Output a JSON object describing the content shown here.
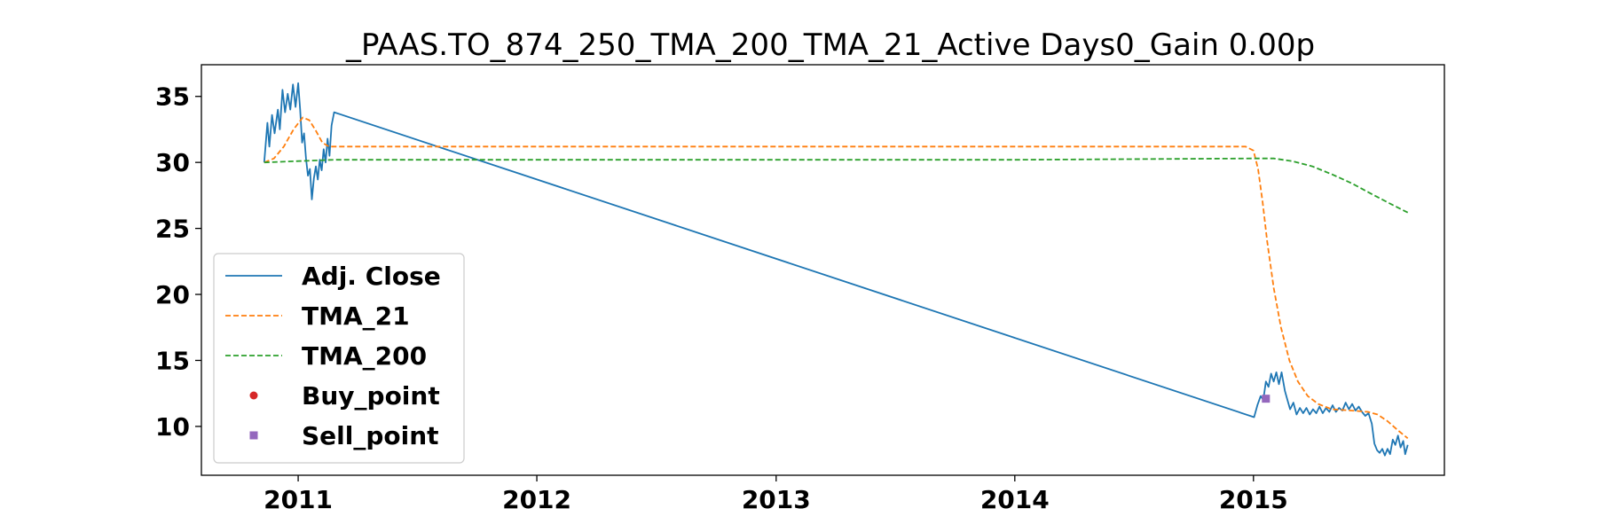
{
  "chart_data": {
    "type": "line",
    "title": "_PAAS.TO_874_250_TMA_200_TMA_21_Active Days0_Gain   0.00p",
    "xlabel": "",
    "ylabel": "",
    "x_ticks": [
      "2011",
      "2012",
      "2013",
      "2014",
      "2015"
    ],
    "y_ticks": [
      10,
      15,
      20,
      25,
      30,
      35
    ],
    "xlim": [
      "2010-08-06",
      "2015-10-20"
    ],
    "ylim": [
      6.3,
      37.4
    ],
    "grid": false,
    "legend_position": "center-left",
    "series": [
      {
        "name": "Adj. Close",
        "style": "solid",
        "color": "#1f77b4",
        "points": [
          [
            "2010-11-10",
            30.0
          ],
          [
            "2010-11-15",
            33.0
          ],
          [
            "2010-11-18",
            31.2
          ],
          [
            "2010-11-22",
            33.6
          ],
          [
            "2010-11-26",
            32.2
          ],
          [
            "2010-12-01",
            34.0
          ],
          [
            "2010-12-04",
            32.5
          ],
          [
            "2010-12-08",
            35.5
          ],
          [
            "2010-12-12",
            33.8
          ],
          [
            "2010-12-16",
            35.2
          ],
          [
            "2010-12-20",
            34.0
          ],
          [
            "2010-12-24",
            35.9
          ],
          [
            "2010-12-28",
            34.2
          ],
          [
            "2011-01-01",
            36.0
          ],
          [
            "2011-01-04",
            34.0
          ],
          [
            "2011-01-07",
            31.5
          ],
          [
            "2011-01-10",
            32.2
          ],
          [
            "2011-01-13",
            30.3
          ],
          [
            "2011-01-16",
            29.0
          ],
          [
            "2011-01-19",
            29.5
          ],
          [
            "2011-01-22",
            27.2
          ],
          [
            "2011-01-25",
            28.8
          ],
          [
            "2011-01-28",
            29.7
          ],
          [
            "2011-01-31",
            28.7
          ],
          [
            "2011-02-03",
            30.2
          ],
          [
            "2011-02-06",
            29.4
          ],
          [
            "2011-02-09",
            31.0
          ],
          [
            "2011-02-12",
            30.0
          ],
          [
            "2011-02-15",
            31.8
          ],
          [
            "2011-02-18",
            30.5
          ],
          [
            "2011-02-21",
            32.8
          ],
          [
            "2011-02-25",
            33.8
          ],
          [
            "2015-01-02",
            10.7
          ],
          [
            "2015-01-07",
            11.6
          ],
          [
            "2015-01-12",
            12.3
          ],
          [
            "2015-01-16",
            12.0
          ],
          [
            "2015-01-20",
            13.4
          ],
          [
            "2015-01-24",
            13.0
          ],
          [
            "2015-01-28",
            14.0
          ],
          [
            "2015-02-01",
            13.4
          ],
          [
            "2015-02-05",
            14.1
          ],
          [
            "2015-02-09",
            13.2
          ],
          [
            "2015-02-13",
            14.1
          ],
          [
            "2015-02-18",
            12.7
          ],
          [
            "2015-02-22",
            12.0
          ],
          [
            "2015-02-26",
            11.3
          ],
          [
            "2015-03-03",
            11.8
          ],
          [
            "2015-03-08",
            10.9
          ],
          [
            "2015-03-13",
            11.4
          ],
          [
            "2015-03-18",
            11.0
          ],
          [
            "2015-03-23",
            11.4
          ],
          [
            "2015-03-28",
            10.9
          ],
          [
            "2015-04-02",
            11.3
          ],
          [
            "2015-04-07",
            11.0
          ],
          [
            "2015-04-12",
            11.5
          ],
          [
            "2015-04-17",
            11.0
          ],
          [
            "2015-04-22",
            11.4
          ],
          [
            "2015-04-27",
            11.1
          ],
          [
            "2015-05-02",
            11.6
          ],
          [
            "2015-05-07",
            11.1
          ],
          [
            "2015-05-12",
            11.4
          ],
          [
            "2015-05-17",
            11.2
          ],
          [
            "2015-05-22",
            11.8
          ],
          [
            "2015-05-27",
            11.3
          ],
          [
            "2015-06-01",
            11.7
          ],
          [
            "2015-06-06",
            11.2
          ],
          [
            "2015-06-11",
            11.5
          ],
          [
            "2015-06-16",
            11.1
          ],
          [
            "2015-06-21",
            10.8
          ],
          [
            "2015-06-26",
            11.0
          ],
          [
            "2015-07-01",
            10.2
          ],
          [
            "2015-07-05",
            8.7
          ],
          [
            "2015-07-09",
            8.2
          ],
          [
            "2015-07-13",
            8.0
          ],
          [
            "2015-07-17",
            8.3
          ],
          [
            "2015-07-21",
            7.8
          ],
          [
            "2015-07-25",
            8.3
          ],
          [
            "2015-07-29",
            7.9
          ],
          [
            "2015-08-02",
            9.0
          ],
          [
            "2015-08-06",
            8.6
          ],
          [
            "2015-08-10",
            9.3
          ],
          [
            "2015-08-14",
            8.4
          ],
          [
            "2015-08-18",
            8.9
          ],
          [
            "2015-08-21",
            7.9
          ],
          [
            "2015-08-25",
            8.6
          ]
        ]
      },
      {
        "name": "TMA_21",
        "style": "dashed",
        "color": "#ff7f0e",
        "points": [
          [
            "2010-11-10",
            30.0
          ],
          [
            "2010-11-25",
            30.3
          ],
          [
            "2010-12-10",
            31.2
          ],
          [
            "2010-12-25",
            32.5
          ],
          [
            "2011-01-08",
            33.4
          ],
          [
            "2011-01-18",
            33.2
          ],
          [
            "2011-01-28",
            32.4
          ],
          [
            "2011-02-07",
            31.5
          ],
          [
            "2011-02-17",
            31.2
          ],
          [
            "2011-02-25",
            31.2
          ],
          [
            "2011-06-01",
            31.2
          ],
          [
            "2012-01-01",
            31.2
          ],
          [
            "2013-01-01",
            31.2
          ],
          [
            "2014-01-01",
            31.2
          ],
          [
            "2014-12-20",
            31.2
          ],
          [
            "2015-01-01",
            30.9
          ],
          [
            "2015-01-08",
            29.5
          ],
          [
            "2015-01-15",
            27.0
          ],
          [
            "2015-01-22",
            24.0
          ],
          [
            "2015-02-01",
            20.5
          ],
          [
            "2015-02-12",
            17.5
          ],
          [
            "2015-02-25",
            15.0
          ],
          [
            "2015-03-10",
            13.4
          ],
          [
            "2015-03-25",
            12.3
          ],
          [
            "2015-04-10",
            11.7
          ],
          [
            "2015-05-01",
            11.3
          ],
          [
            "2015-06-01",
            11.2
          ],
          [
            "2015-06-25",
            11.1
          ],
          [
            "2015-07-10",
            10.9
          ],
          [
            "2015-07-25",
            10.4
          ],
          [
            "2015-08-10",
            9.7
          ],
          [
            "2015-08-25",
            9.1
          ]
        ]
      },
      {
        "name": "TMA_200",
        "style": "dashed",
        "color": "#2ca02c",
        "points": [
          [
            "2010-11-10",
            30.0
          ],
          [
            "2011-01-01",
            30.1
          ],
          [
            "2011-02-25",
            30.2
          ],
          [
            "2012-01-01",
            30.2
          ],
          [
            "2013-01-01",
            30.2
          ],
          [
            "2014-01-01",
            30.2
          ],
          [
            "2015-01-01",
            30.3
          ],
          [
            "2015-02-01",
            30.3
          ],
          [
            "2015-03-01",
            30.1
          ],
          [
            "2015-04-01",
            29.7
          ],
          [
            "2015-05-01",
            29.1
          ],
          [
            "2015-06-01",
            28.4
          ],
          [
            "2015-07-01",
            27.6
          ],
          [
            "2015-08-01",
            26.8
          ],
          [
            "2015-08-25",
            26.2
          ]
        ]
      }
    ],
    "markers": [
      {
        "name": "Buy_point",
        "shape": "circle",
        "color": "#d62728",
        "points": []
      },
      {
        "name": "Sell_point",
        "shape": "square",
        "color": "#9467bd",
        "points": [
          [
            "2015-01-20",
            12.1
          ]
        ]
      }
    ]
  }
}
